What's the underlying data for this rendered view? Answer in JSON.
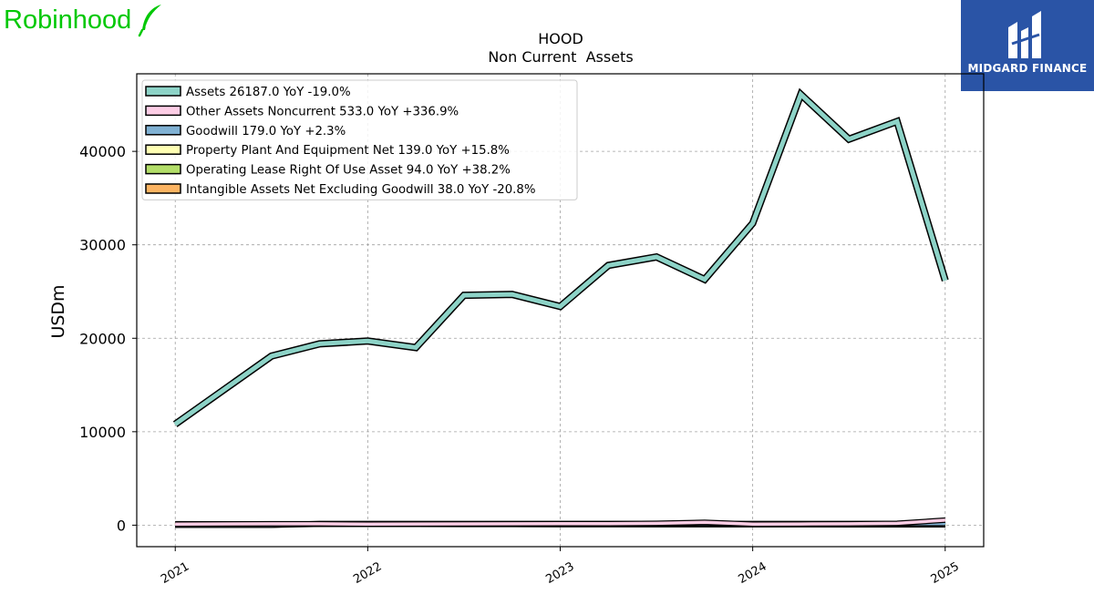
{
  "brand": {
    "left_name": "Robinhood",
    "left_icon": "feather-icon",
    "left_color": "#00c805",
    "right_name": "MIDGARD FINANCE",
    "right_icon": "midgard-logo-icon",
    "right_bg": "#2a54a6"
  },
  "chart_data": {
    "type": "line",
    "title": "HOOD",
    "subtitle": "Non Current  Assets",
    "ylabel": "USDm",
    "xlabel": "",
    "xlim": [
      2020.8,
      2025.2
    ],
    "ylim": [
      -2300,
      48300
    ],
    "grid": true,
    "legend_position": "top-left",
    "x_ticks": [
      2021,
      2022,
      2023,
      2024,
      2025
    ],
    "x_tick_labels": [
      "2021",
      "2022",
      "2023",
      "2024",
      "2025"
    ],
    "y_ticks": [
      0,
      10000,
      20000,
      30000,
      40000
    ],
    "y_tick_labels": [
      "0",
      "10000",
      "20000",
      "30000",
      "40000"
    ],
    "x": [
      2021.0,
      2021.5,
      2021.75,
      2022.0,
      2022.25,
      2022.5,
      2022.75,
      2023.0,
      2023.25,
      2023.5,
      2023.75,
      2024.0,
      2024.25,
      2024.5,
      2024.75,
      2025.0
    ],
    "series": [
      {
        "name": "Assets",
        "legend_label": "Assets  26187.0 YoY -19.0%",
        "color": "#8dd3c7",
        "values": [
          10800,
          18100,
          19400,
          19700,
          19000,
          24600,
          24700,
          23400,
          27800,
          28700,
          26300,
          32300,
          46100,
          41300,
          43200,
          26187
        ]
      },
      {
        "name": "Other Assets Noncurrent",
        "legend_label": "Other Assets Noncurrent  533.0 YoY +336.9%",
        "color": "#fccde5",
        "values": [
          120,
          150,
          150,
          122,
          130,
          140,
          150,
          160,
          170,
          200,
          300,
          122,
          130,
          150,
          200,
          533
        ]
      },
      {
        "name": "Goodwill",
        "legend_label": "Goodwill  179.0 YoY +2.3%",
        "color": "#80b1d3",
        "values": [
          0,
          0,
          180,
          175,
          175,
          175,
          175,
          175,
          175,
          175,
          175,
          175,
          175,
          175,
          175,
          179
        ]
      },
      {
        "name": "Property Plant And Equipment Net",
        "legend_label": "Property Plant And Equipment Net  139.0 YoY +15.8%",
        "color": "#ffffb3",
        "values": [
          80,
          90,
          95,
          100,
          110,
          115,
          120,
          120,
          118,
          117,
          116,
          120,
          125,
          130,
          135,
          139
        ]
      },
      {
        "name": "Operating Lease Right Of Use Asset",
        "legend_label": "Operating Lease Right Of Use Asset  94.0 YoY +38.2%",
        "color": "#b3de69",
        "values": [
          150,
          140,
          130,
          120,
          110,
          100,
          90,
          80,
          75,
          70,
          68,
          68,
          75,
          80,
          90,
          94
        ]
      },
      {
        "name": "Intangible Assets Net Excluding Goodwill",
        "legend_label": "Intangible Assets Net Excluding Goodwill  38.0 YoY -20.8%",
        "color": "#fdb462",
        "values": [
          0,
          0,
          100,
          95,
          90,
          80,
          75,
          70,
          65,
          60,
          55,
          48,
          45,
          43,
          40,
          38
        ]
      }
    ]
  }
}
